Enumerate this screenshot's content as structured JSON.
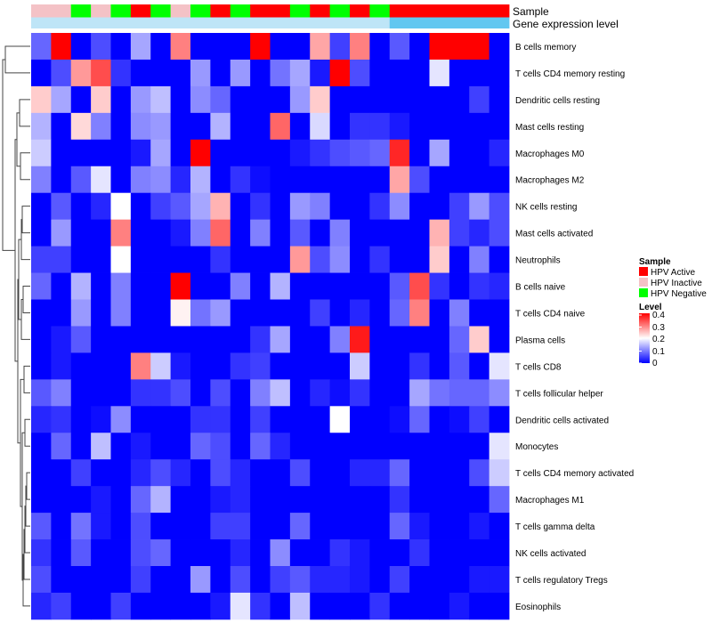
{
  "chart_data": {
    "type": "heatmap",
    "title": "",
    "annotation_tracks": [
      {
        "label": "Sample"
      },
      {
        "label": "Gene expression level"
      }
    ],
    "rows": [
      "B cells memory",
      "T cells CD4 memory resting",
      "Dendritic cells resting",
      "Mast cells resting",
      "Macrophages M0",
      "Macrophages M2",
      "NK cells resting",
      "Mast cells activated",
      "Neutrophils",
      "B cells naive",
      "T cells CD4 naive",
      "Plasma cells",
      "T cells CD8",
      "T cells follicular helper",
      "Dendritic cells activated",
      "Monocytes",
      "T cells CD4 memory activated",
      "Macrophages M1",
      "T cells gamma delta",
      "NK cells activated",
      "T cells regulatory  Tregs",
      "Eosinophils"
    ],
    "sample_groups": [
      "Inactive",
      "Inactive",
      "Negative",
      "Inactive",
      "Negative",
      "Active",
      "Negative",
      "Inactive",
      "Negative",
      "Active",
      "Negative",
      "Active",
      "Active",
      "Negative",
      "Active",
      "Negative",
      "Active",
      "Negative",
      "Active",
      "Active",
      "Active",
      "Active",
      "Active",
      "Active"
    ],
    "gene_expression_level": [
      0.1,
      0.1,
      0.1,
      0.1,
      0.1,
      0.1,
      0.1,
      0.1,
      0.1,
      0.1,
      0.1,
      0.1,
      0.1,
      0.1,
      0.1,
      0.1,
      0.1,
      0.1,
      0.9,
      0.9,
      0.9,
      0.9,
      0.9,
      0.9
    ],
    "values": [
      [
        0.08,
        0.4,
        0.0,
        0.06,
        0.0,
        0.13,
        0.0,
        0.3,
        0.0,
        0.0,
        0.0,
        0.4,
        0.0,
        0.0,
        0.27,
        0.05,
        0.3,
        0.0,
        0.07,
        0.0,
        0.4,
        0.4,
        0.4,
        0.0
      ],
      [
        0.0,
        0.06,
        0.28,
        0.34,
        0.04,
        0.0,
        0.0,
        0.0,
        0.12,
        0.0,
        0.12,
        0.0,
        0.09,
        0.13,
        0.02,
        0.4,
        0.06,
        0.0,
        0.0,
        0.0,
        0.18,
        0.0,
        0.0,
        0.0
      ],
      [
        0.24,
        0.13,
        0.0,
        0.24,
        0.0,
        0.12,
        0.15,
        0.0,
        0.11,
        0.08,
        0.0,
        0.0,
        0.0,
        0.12,
        0.24,
        0.0,
        0.0,
        0.0,
        0.0,
        0.0,
        0.0,
        0.0,
        0.05,
        0.0
      ],
      [
        0.14,
        0.0,
        0.23,
        0.1,
        0.0,
        0.11,
        0.12,
        0.0,
        0.0,
        0.14,
        0.0,
        0.0,
        0.32,
        0.0,
        0.17,
        0.0,
        0.04,
        0.04,
        0.02,
        0.0,
        0.0,
        0.0,
        0.0,
        0.0
      ],
      [
        0.16,
        0.0,
        0.0,
        0.0,
        0.0,
        0.02,
        0.13,
        0.0,
        0.4,
        0.0,
        0.0,
        0.0,
        0.0,
        0.02,
        0.04,
        0.06,
        0.07,
        0.08,
        0.37,
        0.0,
        0.13,
        0.0,
        0.0,
        0.03
      ],
      [
        0.1,
        0.0,
        0.07,
        0.18,
        0.0,
        0.1,
        0.11,
        0.03,
        0.14,
        0.0,
        0.04,
        0.01,
        0.0,
        0.0,
        0.0,
        0.0,
        0.0,
        0.0,
        0.27,
        0.06,
        0.0,
        0.0,
        0.0,
        0.0
      ],
      [
        0.0,
        0.07,
        0.0,
        0.03,
        0.2,
        0.0,
        0.05,
        0.07,
        0.13,
        0.26,
        0.0,
        0.04,
        0.0,
        0.12,
        0.1,
        0.0,
        0.0,
        0.04,
        0.11,
        0.0,
        0.0,
        0.05,
        0.12,
        0.06
      ],
      [
        0.0,
        0.12,
        0.0,
        0.0,
        0.3,
        0.0,
        0.0,
        0.02,
        0.1,
        0.32,
        0.0,
        0.1,
        0.0,
        0.07,
        0.0,
        0.1,
        0.0,
        0.0,
        0.0,
        0.0,
        0.26,
        0.05,
        0.03,
        0.06
      ],
      [
        0.05,
        0.05,
        0.0,
        0.0,
        0.2,
        0.0,
        0.0,
        0.0,
        0.0,
        0.04,
        0.0,
        0.0,
        0.0,
        0.28,
        0.06,
        0.11,
        0.0,
        0.04,
        0.0,
        0.0,
        0.24,
        0.0,
        0.1,
        0.0
      ],
      [
        0.08,
        0.0,
        0.14,
        0.0,
        0.1,
        0.0,
        0.0,
        0.4,
        0.0,
        0.0,
        0.1,
        0.0,
        0.14,
        0.0,
        0.0,
        0.0,
        0.0,
        0.0,
        0.07,
        0.34,
        0.04,
        0.0,
        0.04,
        0.03
      ],
      [
        0.0,
        0.0,
        0.12,
        0.0,
        0.1,
        0.0,
        0.0,
        0.21,
        0.09,
        0.12,
        0.0,
        0.0,
        0.0,
        0.0,
        0.05,
        0.0,
        0.03,
        0.0,
        0.08,
        0.3,
        0.0,
        0.1,
        0.0,
        0.0
      ],
      [
        0.0,
        0.02,
        0.07,
        0.0,
        0.0,
        0.0,
        0.0,
        0.0,
        0.0,
        0.0,
        0.0,
        0.04,
        0.13,
        0.0,
        0.0,
        0.1,
        0.38,
        0.0,
        0.0,
        0.0,
        0.0,
        0.08,
        0.24,
        0.0
      ],
      [
        0.0,
        0.02,
        0.0,
        0.0,
        0.0,
        0.3,
        0.16,
        0.02,
        0.0,
        0.0,
        0.04,
        0.05,
        0.0,
        0.0,
        0.0,
        0.0,
        0.16,
        0.0,
        0.0,
        0.04,
        0.0,
        0.07,
        0.0,
        0.18
      ],
      [
        0.07,
        0.1,
        0.0,
        0.0,
        0.0,
        0.04,
        0.04,
        0.06,
        0.0,
        0.06,
        0.0,
        0.1,
        0.15,
        0.0,
        0.03,
        0.01,
        0.04,
        0.0,
        0.0,
        0.13,
        0.09,
        0.08,
        0.08,
        0.11
      ],
      [
        0.03,
        0.04,
        0.0,
        0.01,
        0.11,
        0.0,
        0.0,
        0.0,
        0.04,
        0.04,
        0.0,
        0.05,
        0.0,
        0.0,
        0.0,
        0.2,
        0.0,
        0.0,
        0.01,
        0.08,
        0.0,
        0.01,
        0.05,
        0.0
      ],
      [
        0.0,
        0.08,
        0.0,
        0.15,
        0.0,
        0.02,
        0.0,
        0.0,
        0.08,
        0.06,
        0.0,
        0.08,
        0.03,
        0.0,
        0.0,
        0.0,
        0.0,
        0.0,
        0.0,
        0.0,
        0.0,
        0.0,
        0.0,
        0.18
      ],
      [
        0.0,
        0.0,
        0.05,
        0.0,
        0.0,
        0.03,
        0.06,
        0.03,
        0.0,
        0.06,
        0.03,
        0.0,
        0.0,
        0.06,
        0.0,
        0.0,
        0.03,
        0.03,
        0.08,
        0.0,
        0.0,
        0.0,
        0.06,
        0.16
      ],
      [
        0.0,
        0.0,
        0.0,
        0.02,
        0.0,
        0.08,
        0.14,
        0.0,
        0.0,
        0.02,
        0.03,
        0.0,
        0.0,
        0.0,
        0.0,
        0.0,
        0.0,
        0.0,
        0.04,
        0.0,
        0.0,
        0.0,
        0.0,
        0.08
      ],
      [
        0.07,
        0.0,
        0.09,
        0.02,
        0.0,
        0.06,
        0.0,
        0.0,
        0.0,
        0.05,
        0.05,
        0.0,
        0.0,
        0.08,
        0.0,
        0.0,
        0.0,
        0.0,
        0.08,
        0.02,
        0.0,
        0.0,
        0.02,
        0.0
      ],
      [
        0.04,
        0.0,
        0.07,
        0.0,
        0.0,
        0.06,
        0.08,
        0.0,
        0.0,
        0.0,
        0.03,
        0.0,
        0.11,
        0.0,
        0.0,
        0.04,
        0.02,
        0.0,
        0.0,
        0.04,
        0.0,
        0.0,
        0.0,
        0.0
      ],
      [
        0.06,
        0.0,
        0.0,
        0.0,
        0.0,
        0.05,
        0.0,
        0.0,
        0.12,
        0.0,
        0.06,
        0.0,
        0.05,
        0.07,
        0.03,
        0.03,
        0.02,
        0.0,
        0.05,
        0.0,
        0.0,
        0.0,
        0.02,
        0.02
      ],
      [
        0.03,
        0.05,
        0.0,
        0.0,
        0.05,
        0.0,
        0.0,
        0.0,
        0.0,
        0.02,
        0.18,
        0.04,
        0.0,
        0.15,
        0.0,
        0.0,
        0.0,
        0.04,
        0.0,
        0.0,
        0.0,
        0.02,
        0.0,
        0.0
      ]
    ],
    "legend": {
      "position": "right",
      "sample": {
        "title": "Sample",
        "items": [
          {
            "label": "HPV Active",
            "color": "#ff0000"
          },
          {
            "label": "HPV Inactive",
            "color": "#f4c2c6"
          },
          {
            "label": "HPV Negative",
            "color": "#00ff00"
          }
        ]
      },
      "level": {
        "title": "Level",
        "ticks": [
          "0.4",
          "0.3",
          "0.2",
          "0.1",
          "0"
        ],
        "range": [
          0,
          0.4
        ],
        "colors": {
          "low": "#0000ff",
          "mid": "#ffffff",
          "high": "#ff0000"
        }
      }
    },
    "colors": {
      "gene_expression_low": "#c9e9f8",
      "gene_expression_high": "#56c3ef"
    }
  }
}
